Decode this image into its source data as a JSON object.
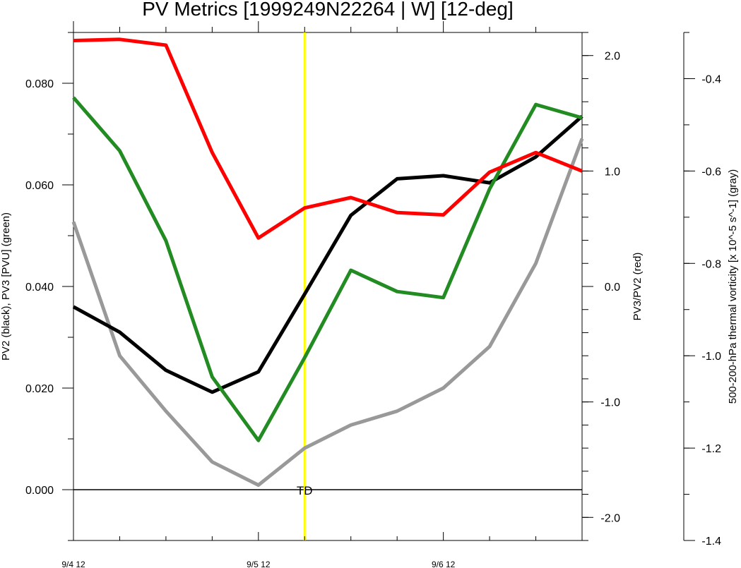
{
  "chart_data": {
    "type": "line",
    "title": "PV Metrics [1999249N22264 | W] [12-deg]",
    "x": [
      0,
      0.5,
      1.0,
      1.5,
      2.0,
      2.5,
      3.0,
      3.5,
      4.0,
      4.5,
      5.0,
      5.5
    ],
    "x_ticks": [
      {
        "x": 0,
        "label": "9/4 12"
      },
      {
        "x": 2,
        "label": "9/5 12"
      },
      {
        "x": 4,
        "label": "9/6 12"
      }
    ],
    "xlim": [
      0,
      5.5
    ],
    "axes": {
      "left": {
        "label": "PV2 (black), PV3 [PVU] (green)",
        "ylim": [
          -0.01,
          0.09
        ],
        "ticks": [
          "0.000",
          "0.020",
          "0.040",
          "0.060",
          "0.080"
        ],
        "tick_values": [
          0,
          0.02,
          0.04,
          0.06,
          0.08
        ],
        "minor_step": 0.01
      },
      "right": {
        "label": "PV3/PV2 (red)",
        "ylim": [
          -2.2,
          2.2
        ],
        "ticks": [
          "-2.0",
          "-1.0",
          "0.0",
          "1.0",
          "2.0"
        ],
        "tick_values": [
          -2,
          -1,
          0,
          1,
          2
        ],
        "minor_step": 0.2
      },
      "far_right": {
        "label": "500-200-hPa thermal vorticity [x 10^-5 s^-1] (gray)",
        "ylim": [
          -1.4,
          -0.3
        ],
        "ticks": [
          "-1.4",
          "-1.2",
          "-1.0",
          "-0.8",
          "-0.6",
          "-0.4"
        ],
        "tick_values": [
          -1.4,
          -1.2,
          -1.0,
          -0.8,
          -0.6,
          -0.4
        ],
        "minor_step": 0.1
      }
    },
    "series": [
      {
        "axis": "left",
        "color": "#000000",
        "values": [
          0.036,
          0.031,
          0.0235,
          0.0192,
          0.0232,
          0.0385,
          0.054,
          0.0612,
          0.0618,
          0.0604,
          0.0655,
          0.0735
        ]
      },
      {
        "axis": "left",
        "color": "#228b22",
        "values": [
          0.0772,
          0.0667,
          0.049,
          0.0222,
          0.0097,
          0.026,
          0.0432,
          0.039,
          0.0378,
          0.0592,
          0.0758,
          0.0732
        ]
      },
      {
        "axis": "right",
        "color": "#ff0000",
        "values": [
          2.13,
          2.14,
          2.09,
          1.16,
          0.42,
          0.68,
          0.77,
          0.64,
          0.62,
          0.99,
          1.16,
          1.0
        ]
      },
      {
        "axis": "far_right",
        "color": "#999999",
        "values": [
          -0.71,
          -1.0,
          -1.12,
          -1.23,
          -1.28,
          -1.2,
          -1.15,
          -1.12,
          -1.07,
          -0.98,
          -0.8,
          -0.53
        ]
      }
    ],
    "reference_line": {
      "value": 0.0,
      "axis": "left",
      "color": "#000000"
    },
    "marker": {
      "x": 2.5,
      "color": "#ffff00",
      "label": "TD"
    }
  }
}
